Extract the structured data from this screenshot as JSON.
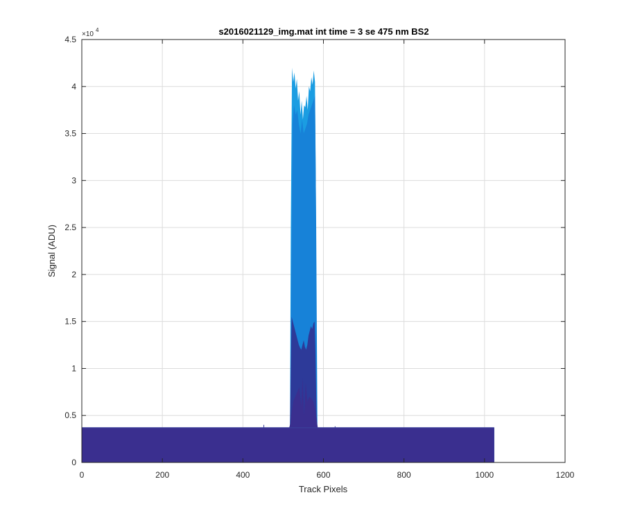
{
  "chart_data": {
    "type": "area",
    "title": "s2016021129_img.mat int time = 3 se  475 nm BS2",
    "xlabel": "Track Pixels",
    "ylabel": "Signal (ADU)",
    "xlim": [
      0,
      1200
    ],
    "ylim": [
      0,
      45000
    ],
    "x_ticks": [
      0,
      200,
      400,
      600,
      800,
      1000,
      1200
    ],
    "x_tick_labels": [
      "0",
      "200",
      "400",
      "600",
      "800",
      "1000",
      "1200"
    ],
    "y_ticks": [
      0,
      5000,
      10000,
      15000,
      20000,
      25000,
      30000,
      35000,
      40000,
      45000
    ],
    "y_tick_labels": [
      "0",
      "0.5",
      "1",
      "1.5",
      "2",
      "2.5",
      "3",
      "3.5",
      "4",
      "4.5"
    ],
    "y_exponent_label": "×10",
    "y_exponent_power": "4",
    "grid": true,
    "baseline_value": 3700,
    "data_extent": [
      0,
      1024
    ],
    "series": [
      {
        "color": "#1b9de2",
        "x": [
          0,
          517,
          519,
          522,
          525,
          528,
          531,
          534,
          537,
          540,
          543,
          546,
          549,
          552,
          555,
          558,
          561,
          564,
          567,
          570,
          573,
          576,
          579,
          581,
          584,
          1024
        ],
        "y": [
          3700,
          3700,
          25000,
          42000,
          40500,
          41500,
          39800,
          40800,
          38500,
          39500,
          37000,
          38500,
          36500,
          38000,
          37800,
          39000,
          37500,
          40000,
          39500,
          41000,
          40200,
          41700,
          40500,
          30000,
          3700,
          3700
        ]
      },
      {
        "color": "#1782d8",
        "x": [
          0,
          517,
          520,
          523,
          527,
          531,
          535,
          539,
          543,
          547,
          551,
          555,
          559,
          563,
          567,
          571,
          575,
          579,
          582,
          585,
          1024
        ],
        "y": [
          3700,
          3700,
          20000,
          36000,
          38000,
          37000,
          37500,
          36000,
          35000,
          36500,
          35000,
          35500,
          36000,
          37000,
          37500,
          38000,
          38500,
          39000,
          25000,
          3700,
          3700
        ]
      },
      {
        "color": "#2d3a99",
        "x": [
          0,
          517,
          519,
          521,
          524,
          527,
          530,
          533,
          536,
          539,
          542,
          545,
          548,
          551,
          554,
          557,
          560,
          563,
          566,
          569,
          572,
          575,
          578,
          580,
          583,
          585,
          1024
        ],
        "y": [
          3700,
          3700,
          10000,
          15500,
          15000,
          14500,
          14000,
          13500,
          13000,
          12500,
          12200,
          12000,
          12500,
          13000,
          12300,
          12000,
          12500,
          13500,
          14000,
          14500,
          14200,
          14800,
          15000,
          12000,
          5000,
          3700,
          3700
        ]
      },
      {
        "color": "#3a2f8f",
        "x": [
          0,
          515,
          518,
          520,
          525,
          530,
          535,
          540,
          545,
          548,
          552,
          556,
          560,
          565,
          570,
          575,
          580,
          583,
          586,
          1024
        ],
        "y": [
          3700,
          3700,
          4200,
          5000,
          6500,
          7000,
          7500,
          8000,
          6000,
          9000,
          5000,
          8500,
          6500,
          7000,
          6800,
          6500,
          5500,
          4500,
          3700,
          3700
        ]
      }
    ],
    "small_spikes": [
      {
        "x": 452,
        "y": 4000
      },
      {
        "x": 629,
        "y": 3850
      }
    ]
  }
}
